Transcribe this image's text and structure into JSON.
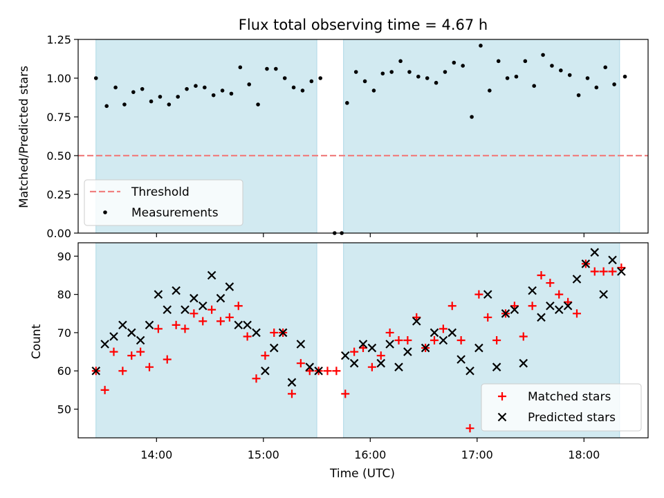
{
  "title": "Flux total observing time = 4.67 h",
  "colors": {
    "shade": "#add8e6",
    "threshold": "#f08080",
    "matched": "#ff0000",
    "predicted": "#000000"
  },
  "chart_data": [
    {
      "type": "scatter",
      "ylabel": "Matched/Predicted stars",
      "ylim": [
        0,
        1.25
      ],
      "xlim": [
        "13:16",
        "18:36"
      ],
      "yticks": [
        "0.00",
        "0.25",
        "0.50",
        "0.75",
        "1.00",
        "1.25"
      ],
      "grid": false,
      "legend_position": "lower-left",
      "shaded_regions": [
        [
          "13:26",
          "15:30"
        ],
        [
          "15:45",
          "18:20"
        ]
      ],
      "threshold": {
        "name": "Threshold",
        "value": 0.5,
        "style": "dashed"
      },
      "series": [
        {
          "name": "Measurements",
          "points": [
            [
              "13:26",
              1.0
            ],
            [
              "13:32",
              0.82
            ],
            [
              "13:37",
              0.94
            ],
            [
              "13:42",
              0.83
            ],
            [
              "13:47",
              0.91
            ],
            [
              "13:52",
              0.93
            ],
            [
              "13:57",
              0.85
            ],
            [
              "14:02",
              0.88
            ],
            [
              "14:07",
              0.83
            ],
            [
              "14:12",
              0.88
            ],
            [
              "14:17",
              0.93
            ],
            [
              "14:22",
              0.95
            ],
            [
              "14:27",
              0.94
            ],
            [
              "14:32",
              0.89
            ],
            [
              "14:37",
              0.92
            ],
            [
              "14:42",
              0.9
            ],
            [
              "14:47",
              1.07
            ],
            [
              "14:52",
              0.96
            ],
            [
              "14:57",
              0.83
            ],
            [
              "15:02",
              1.06
            ],
            [
              "15:07",
              1.06
            ],
            [
              "15:12",
              1.0
            ],
            [
              "15:17",
              0.94
            ],
            [
              "15:22",
              0.92
            ],
            [
              "15:27",
              0.98
            ],
            [
              "15:32",
              1.0
            ],
            [
              "15:40",
              0.0
            ],
            [
              "15:44",
              0.0
            ],
            [
              "15:47",
              0.84
            ],
            [
              "15:52",
              1.04
            ],
            [
              "15:57",
              0.98
            ],
            [
              "16:02",
              0.92
            ],
            [
              "16:07",
              1.03
            ],
            [
              "16:12",
              1.04
            ],
            [
              "16:17",
              1.11
            ],
            [
              "16:22",
              1.04
            ],
            [
              "16:27",
              1.01
            ],
            [
              "16:32",
              1.0
            ],
            [
              "16:37",
              0.97
            ],
            [
              "16:42",
              1.04
            ],
            [
              "16:47",
              1.1
            ],
            [
              "16:52",
              1.08
            ],
            [
              "16:57",
              0.75
            ],
            [
              "17:02",
              1.21
            ],
            [
              "17:07",
              0.92
            ],
            [
              "17:12",
              1.11
            ],
            [
              "17:17",
              1.0
            ],
            [
              "17:22",
              1.01
            ],
            [
              "17:27",
              1.11
            ],
            [
              "17:32",
              0.95
            ],
            [
              "17:37",
              1.15
            ],
            [
              "17:42",
              1.08
            ],
            [
              "17:47",
              1.05
            ],
            [
              "17:52",
              1.02
            ],
            [
              "17:57",
              0.89
            ],
            [
              "18:02",
              1.0
            ],
            [
              "18:07",
              0.94
            ],
            [
              "18:12",
              1.07
            ],
            [
              "18:17",
              0.96
            ],
            [
              "18:23",
              1.01
            ]
          ]
        }
      ]
    },
    {
      "type": "scatter",
      "xlabel": "Time (UTC)",
      "ylabel": "Count",
      "ylim": [
        42.5,
        93.5
      ],
      "xlim": [
        "13:16",
        "18:36"
      ],
      "xticks": [
        "14:00",
        "15:00",
        "16:00",
        "17:00",
        "18:00"
      ],
      "yticks": [
        "50",
        "60",
        "70",
        "80",
        "90"
      ],
      "grid": false,
      "legend_position": "lower-right",
      "shaded_regions": [
        [
          "13:26",
          "15:30"
        ],
        [
          "15:45",
          "18:20"
        ]
      ],
      "series": [
        {
          "name": "Matched stars",
          "marker": "plus",
          "points": [
            [
              "13:26",
              60
            ],
            [
              "13:31",
              55
            ],
            [
              "13:36",
              65
            ],
            [
              "13:41",
              60
            ],
            [
              "13:46",
              64
            ],
            [
              "13:51",
              65
            ],
            [
              "13:56",
              61
            ],
            [
              "14:01",
              71
            ],
            [
              "14:06",
              63
            ],
            [
              "14:11",
              72
            ],
            [
              "14:16",
              71
            ],
            [
              "14:21",
              75
            ],
            [
              "14:26",
              73
            ],
            [
              "14:31",
              76
            ],
            [
              "14:36",
              73
            ],
            [
              "14:41",
              74
            ],
            [
              "14:46",
              77
            ],
            [
              "14:51",
              69
            ],
            [
              "14:56",
              58
            ],
            [
              "15:01",
              64
            ],
            [
              "15:06",
              70
            ],
            [
              "15:11",
              70
            ],
            [
              "15:16",
              54
            ],
            [
              "15:21",
              62
            ],
            [
              "15:26",
              60
            ],
            [
              "15:31",
              60
            ],
            [
              "15:36",
              60
            ],
            [
              "15:41",
              60
            ],
            [
              "15:46",
              54
            ],
            [
              "15:51",
              65
            ],
            [
              "15:56",
              66
            ],
            [
              "16:01",
              61
            ],
            [
              "16:06",
              64
            ],
            [
              "16:11",
              70
            ],
            [
              "16:16",
              68
            ],
            [
              "16:21",
              68
            ],
            [
              "16:26",
              74
            ],
            [
              "16:31",
              66
            ],
            [
              "16:36",
              68
            ],
            [
              "16:41",
              71
            ],
            [
              "16:46",
              77
            ],
            [
              "16:51",
              68
            ],
            [
              "16:56",
              45
            ],
            [
              "17:01",
              80
            ],
            [
              "17:06",
              74
            ],
            [
              "17:11",
              68
            ],
            [
              "17:16",
              75
            ],
            [
              "17:21",
              77
            ],
            [
              "17:26",
              69
            ],
            [
              "17:31",
              77
            ],
            [
              "17:36",
              85
            ],
            [
              "17:41",
              83
            ],
            [
              "17:46",
              80
            ],
            [
              "17:51",
              78
            ],
            [
              "17:56",
              75
            ],
            [
              "18:01",
              88
            ],
            [
              "18:06",
              86
            ],
            [
              "18:11",
              86
            ],
            [
              "18:16",
              86
            ],
            [
              "18:21",
              87
            ]
          ]
        },
        {
          "name": "Predicted stars",
          "marker": "x",
          "points": [
            [
              "13:26",
              60
            ],
            [
              "13:31",
              67
            ],
            [
              "13:36",
              69
            ],
            [
              "13:41",
              72
            ],
            [
              "13:46",
              70
            ],
            [
              "13:51",
              68
            ],
            [
              "13:56",
              72
            ],
            [
              "14:01",
              80
            ],
            [
              "14:06",
              76
            ],
            [
              "14:11",
              81
            ],
            [
              "14:16",
              76
            ],
            [
              "14:21",
              79
            ],
            [
              "14:26",
              77
            ],
            [
              "14:31",
              85
            ],
            [
              "14:36",
              79
            ],
            [
              "14:41",
              82
            ],
            [
              "14:46",
              72
            ],
            [
              "14:51",
              72
            ],
            [
              "14:56",
              70
            ],
            [
              "15:01",
              60
            ],
            [
              "15:06",
              66
            ],
            [
              "15:11",
              70
            ],
            [
              "15:16",
              57
            ],
            [
              "15:21",
              67
            ],
            [
              "15:26",
              61
            ],
            [
              "15:31",
              60
            ],
            [
              "15:46",
              64
            ],
            [
              "15:51",
              62
            ],
            [
              "15:56",
              67
            ],
            [
              "16:01",
              66
            ],
            [
              "16:06",
              62
            ],
            [
              "16:11",
              67
            ],
            [
              "16:16",
              61
            ],
            [
              "16:21",
              65
            ],
            [
              "16:26",
              73
            ],
            [
              "16:31",
              66
            ],
            [
              "16:36",
              70
            ],
            [
              "16:41",
              68
            ],
            [
              "16:46",
              70
            ],
            [
              "16:51",
              63
            ],
            [
              "16:56",
              60
            ],
            [
              "17:01",
              66
            ],
            [
              "17:06",
              80
            ],
            [
              "17:11",
              61
            ],
            [
              "17:16",
              75
            ],
            [
              "17:21",
              76
            ],
            [
              "17:26",
              62
            ],
            [
              "17:31",
              81
            ],
            [
              "17:36",
              74
            ],
            [
              "17:41",
              77
            ],
            [
              "17:46",
              76
            ],
            [
              "17:51",
              77
            ],
            [
              "17:56",
              84
            ],
            [
              "18:01",
              88
            ],
            [
              "18:06",
              91
            ],
            [
              "18:11",
              80
            ],
            [
              "18:16",
              89
            ],
            [
              "18:21",
              86
            ]
          ]
        }
      ]
    }
  ]
}
